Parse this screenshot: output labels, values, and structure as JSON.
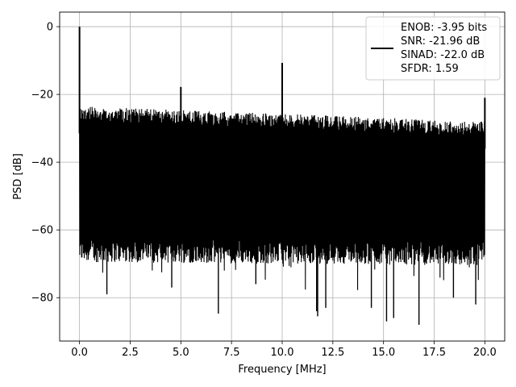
{
  "chart_data": {
    "type": "line",
    "title": "",
    "xlabel": "Frequency [MHz]",
    "ylabel": "PSD [dB]",
    "xlim": [
      -0.98,
      20.98
    ],
    "ylim": [
      -92.8,
      4.3
    ],
    "xticks": [
      0.0,
      2.5,
      5.0,
      7.5,
      10.0,
      12.5,
      15.0,
      17.5,
      20.0
    ],
    "xtick_labels": [
      "0.0",
      "2.5",
      "5.0",
      "7.5",
      "10.0",
      "12.5",
      "15.0",
      "17.5",
      "20.0"
    ],
    "yticks": [
      0,
      -20,
      -40,
      -60,
      -80
    ],
    "ytick_labels": [
      "0",
      "−20",
      "−40",
      "−60",
      "−80"
    ],
    "grid": true,
    "legend_position": "top-right",
    "legend_lines": [
      "ENOB: -3.95 bits",
      "SNR: -21.96 dB",
      "SINAD: -22.0 dB",
      "SFDR: 1.59"
    ],
    "series": [
      {
        "color": "#000000",
        "envelope": {
          "x_range": [
            0.0,
            20.0
          ],
          "upper_start": -23.5,
          "upper_end": -28.0,
          "lower_start": -66.0,
          "lower_end": -67.0,
          "deep_nulls": [
            {
              "x": 1.35,
              "y": -79.0
            },
            {
              "x": 4.55,
              "y": -77.0
            },
            {
              "x": 6.85,
              "y": -84.7
            },
            {
              "x": 8.7,
              "y": -76.0
            },
            {
              "x": 11.7,
              "y": -84.0
            },
            {
              "x": 11.75,
              "y": -85.5
            },
            {
              "x": 12.15,
              "y": -83.0
            },
            {
              "x": 14.4,
              "y": -83.0
            },
            {
              "x": 15.15,
              "y": -87.0
            },
            {
              "x": 15.5,
              "y": -86.0
            },
            {
              "x": 16.75,
              "y": -88.0
            },
            {
              "x": 18.45,
              "y": -80.0
            },
            {
              "x": 19.55,
              "y": -82.0
            }
          ]
        },
        "spikes": [
          {
            "x": 0.0,
            "y": 0.0
          },
          {
            "x": 5.0,
            "y": -17.8
          },
          {
            "x": 10.0,
            "y": -10.7
          },
          {
            "x": 20.0,
            "y": -21.0
          }
        ]
      }
    ]
  }
}
